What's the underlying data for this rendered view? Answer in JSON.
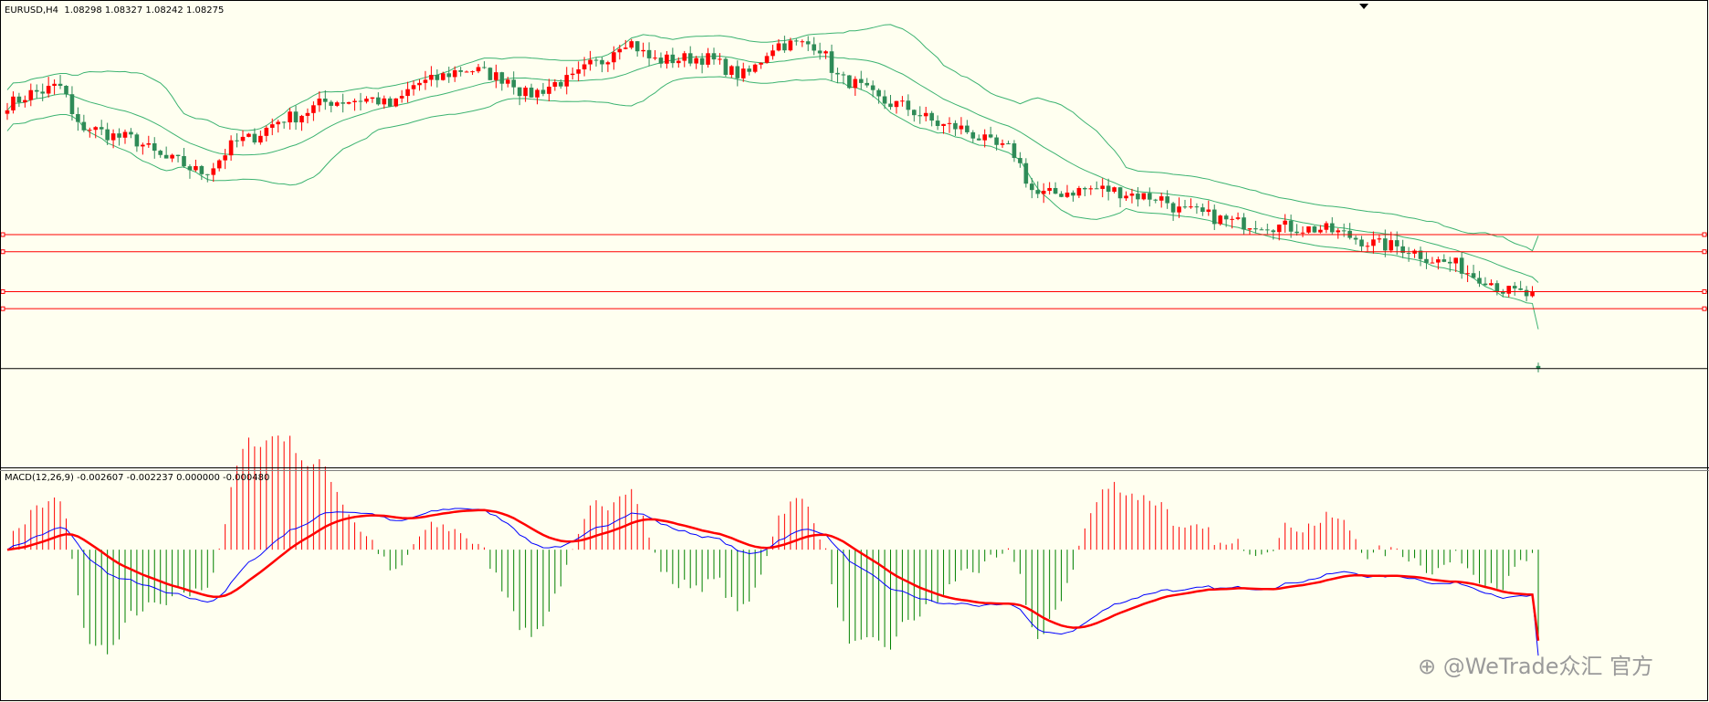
{
  "main_header": "EURUSD,H4  1.08298 1.08327 1.08242 1.08275",
  "macd_header": "MACD(12,26,9) -0.002607 -0.002237 0.000000 -0.000480",
  "watermark": "⊕ @WeTrade众汇 官方",
  "colors": {
    "background": "#fffff0",
    "bull_candle": "#ff0000",
    "bear_candle": "#2e8b57",
    "bollinger": "#3cb371",
    "level_line": "#ff0000",
    "current_price_line": "#000000",
    "macd_positive_hist": "#ff0000",
    "macd_negative_hist": "#008000",
    "macd_line": "#0000ff",
    "signal_line": "#ff0000"
  },
  "chart_data": [
    {
      "type": "candlestick",
      "symbol": "EURUSD",
      "timeframe": "H4",
      "last_ohlc": {
        "open": 1.08298,
        "high": 1.08327,
        "low": 1.08242,
        "close": 1.08275
      },
      "ylim": [
        1.074,
        1.115
      ],
      "indicators": [
        "Bollinger Bands"
      ],
      "close_path_knots": [
        [
          0,
          1.106
        ],
        [
          5,
          1.107
        ],
        [
          9,
          1.1075
        ],
        [
          12,
          1.104
        ],
        [
          20,
          1.103
        ],
        [
          28,
          1.101
        ],
        [
          33,
          1.1
        ],
        [
          40,
          1.1028
        ],
        [
          48,
          1.1048
        ],
        [
          55,
          1.1062
        ],
        [
          62,
          1.1064
        ],
        [
          65,
          1.1058
        ],
        [
          70,
          1.1078
        ],
        [
          78,
          1.109
        ],
        [
          85,
          1.1082
        ],
        [
          88,
          1.1068
        ],
        [
          95,
          1.108
        ],
        [
          100,
          1.1095
        ],
        [
          105,
          1.1115
        ],
        [
          110,
          1.1098
        ],
        [
          118,
          1.11
        ],
        [
          125,
          1.1085
        ],
        [
          131,
          1.1112
        ],
        [
          137,
          1.1112
        ],
        [
          142,
          1.108
        ],
        [
          150,
          1.106
        ],
        [
          160,
          1.104
        ],
        [
          170,
          1.102
        ],
        [
          175,
          1.098
        ],
        [
          185,
          1.0985
        ],
        [
          195,
          1.0978
        ],
        [
          200,
          1.0965
        ],
        [
          210,
          1.0955
        ],
        [
          222,
          1.095
        ],
        [
          235,
          1.0935
        ],
        [
          245,
          1.092
        ],
        [
          250,
          1.0908
        ],
        [
          255,
          1.0895
        ],
        [
          260,
          1.089
        ]
      ],
      "level_lines": [
        1.0945,
        1.093,
        1.0895,
        1.088
      ],
      "current_price": 1.08275
    },
    {
      "type": "macd",
      "params": [
        12,
        26,
        9
      ],
      "values": {
        "main": -0.002607,
        "signal": -0.002237,
        "level": 0.0,
        "histogram": -0.00048
      },
      "ylim": [
        -0.0035,
        0.0018
      ]
    }
  ]
}
